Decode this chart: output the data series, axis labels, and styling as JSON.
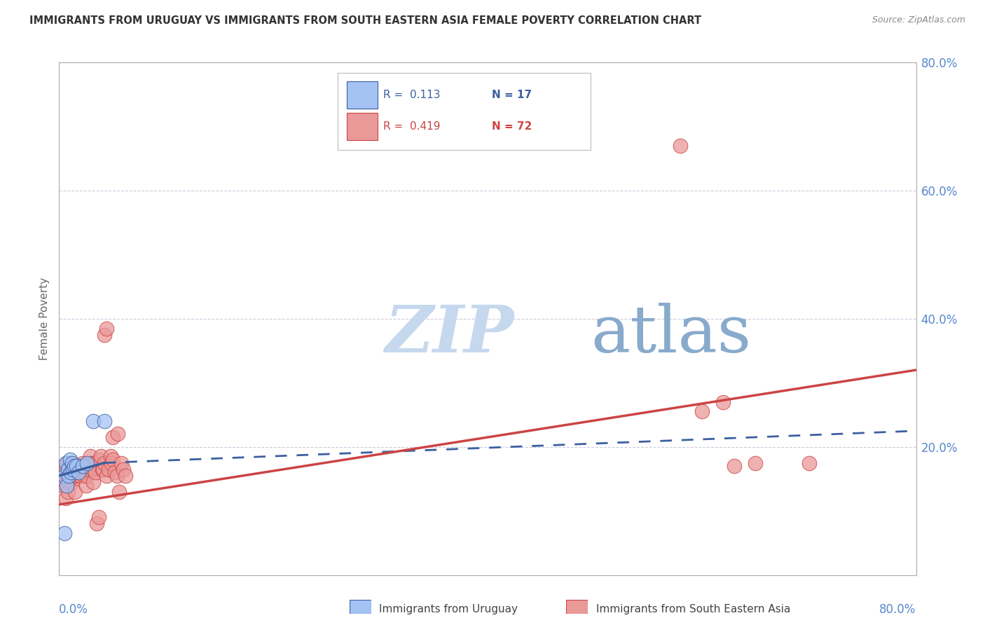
{
  "title": "IMMIGRANTS FROM URUGUAY VS IMMIGRANTS FROM SOUTH EASTERN ASIA FEMALE POVERTY CORRELATION CHART",
  "source": "Source: ZipAtlas.com",
  "ylabel": "Female Poverty",
  "xlim": [
    0.0,
    0.8
  ],
  "ylim": [
    0.0,
    0.8
  ],
  "blue_color": "#a4c2f4",
  "pink_color": "#ea9999",
  "blue_line_color": "#3c5fa0",
  "pink_line_color": "#cc4444",
  "watermark_zip": "ZIP",
  "watermark_atlas": "atlas",
  "watermark_color_zip": "#c8d8ee",
  "watermark_color_atlas": "#88aacc",
  "uruguay_points": [
    [
      0.005,
      0.155
    ],
    [
      0.006,
      0.175
    ],
    [
      0.007,
      0.14
    ],
    [
      0.008,
      0.165
    ],
    [
      0.009,
      0.155
    ],
    [
      0.01,
      0.18
    ],
    [
      0.011,
      0.16
    ],
    [
      0.012,
      0.175
    ],
    [
      0.013,
      0.165
    ],
    [
      0.014,
      0.17
    ],
    [
      0.016,
      0.17
    ],
    [
      0.018,
      0.16
    ],
    [
      0.022,
      0.17
    ],
    [
      0.026,
      0.175
    ],
    [
      0.032,
      0.24
    ],
    [
      0.042,
      0.24
    ],
    [
      0.005,
      0.065
    ]
  ],
  "sea_points": [
    [
      0.003,
      0.145
    ],
    [
      0.004,
      0.14
    ],
    [
      0.005,
      0.16
    ],
    [
      0.005,
      0.17
    ],
    [
      0.006,
      0.12
    ],
    [
      0.006,
      0.165
    ],
    [
      0.007,
      0.14
    ],
    [
      0.007,
      0.175
    ],
    [
      0.008,
      0.155
    ],
    [
      0.008,
      0.13
    ],
    [
      0.009,
      0.145
    ],
    [
      0.009,
      0.165
    ],
    [
      0.01,
      0.17
    ],
    [
      0.01,
      0.155
    ],
    [
      0.011,
      0.16
    ],
    [
      0.011,
      0.175
    ],
    [
      0.012,
      0.155
    ],
    [
      0.012,
      0.145
    ],
    [
      0.013,
      0.17
    ],
    [
      0.013,
      0.155
    ],
    [
      0.014,
      0.165
    ],
    [
      0.015,
      0.155
    ],
    [
      0.015,
      0.13
    ],
    [
      0.016,
      0.165
    ],
    [
      0.017,
      0.16
    ],
    [
      0.018,
      0.17
    ],
    [
      0.019,
      0.155
    ],
    [
      0.02,
      0.165
    ],
    [
      0.02,
      0.155
    ],
    [
      0.021,
      0.165
    ],
    [
      0.022,
      0.175
    ],
    [
      0.023,
      0.155
    ],
    [
      0.024,
      0.17
    ],
    [
      0.025,
      0.165
    ],
    [
      0.025,
      0.14
    ],
    [
      0.026,
      0.155
    ],
    [
      0.027,
      0.165
    ],
    [
      0.028,
      0.17
    ],
    [
      0.029,
      0.185
    ],
    [
      0.03,
      0.175
    ],
    [
      0.031,
      0.165
    ],
    [
      0.032,
      0.145
    ],
    [
      0.033,
      0.175
    ],
    [
      0.034,
      0.16
    ],
    [
      0.035,
      0.08
    ],
    [
      0.037,
      0.09
    ],
    [
      0.038,
      0.18
    ],
    [
      0.039,
      0.185
    ],
    [
      0.04,
      0.165
    ],
    [
      0.041,
      0.165
    ],
    [
      0.042,
      0.175
    ],
    [
      0.044,
      0.155
    ],
    [
      0.046,
      0.165
    ],
    [
      0.048,
      0.185
    ],
    [
      0.049,
      0.175
    ],
    [
      0.05,
      0.18
    ],
    [
      0.052,
      0.16
    ],
    [
      0.054,
      0.155
    ],
    [
      0.056,
      0.13
    ],
    [
      0.058,
      0.175
    ],
    [
      0.06,
      0.165
    ],
    [
      0.062,
      0.155
    ],
    [
      0.05,
      0.215
    ],
    [
      0.055,
      0.22
    ],
    [
      0.042,
      0.375
    ],
    [
      0.044,
      0.385
    ],
    [
      0.58,
      0.67
    ],
    [
      0.6,
      0.255
    ],
    [
      0.62,
      0.27
    ],
    [
      0.63,
      0.17
    ],
    [
      0.65,
      0.175
    ],
    [
      0.7,
      0.175
    ]
  ],
  "blue_line": {
    "x0": 0.0,
    "x1": 0.042,
    "y0": 0.155,
    "y1": 0.175,
    "xd0": 0.042,
    "xd1": 0.8,
    "yd0": 0.175,
    "yd1": 0.225
  },
  "pink_line": {
    "x0": 0.0,
    "y0": 0.11,
    "x1": 0.8,
    "y1": 0.32
  }
}
